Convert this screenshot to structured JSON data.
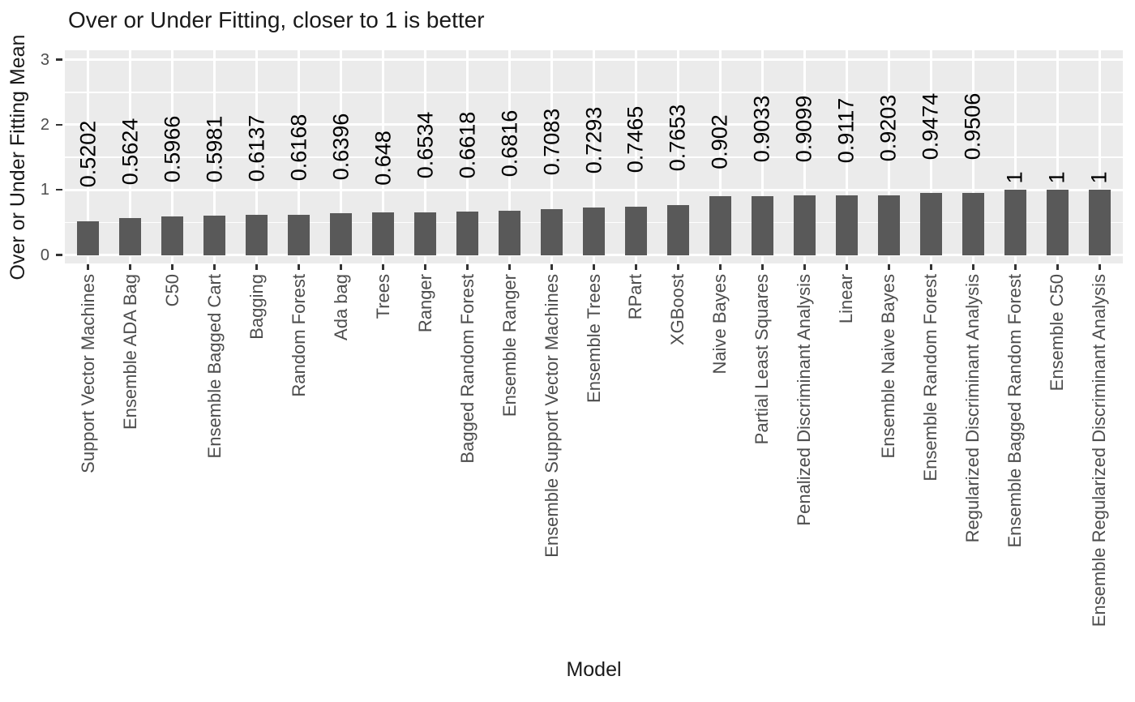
{
  "chart_data": {
    "type": "bar",
    "title": "Over or Under Fitting, closer to 1 is better",
    "xlabel": "Model",
    "ylabel": "Over or Under Fitting Mean",
    "categories": [
      "Support Vector Machines",
      "Ensemble ADA Bag",
      "C50",
      "Ensemble Bagged Cart",
      "Bagging",
      "Random Forest",
      "Ada bag",
      "Trees",
      "Ranger",
      "Bagged Random Forest",
      "Ensemble Ranger",
      "Ensemble Support Vector Machines",
      "Ensemble Trees",
      "RPart",
      "XGBoost",
      "Naive Bayes",
      "Partial Least Squares",
      "Penalized Discriminant Analysis",
      "Linear",
      "Ensemble Naive Bayes",
      "Ensemble Random Forest",
      "Regularized Discriminant Analysis",
      "Ensemble Bagged Random Forest",
      "Ensemble C50",
      "Ensemble Regularized Discriminant Analysis"
    ],
    "values": [
      0.5202,
      0.5624,
      0.5966,
      0.5981,
      0.6137,
      0.6168,
      0.6396,
      0.648,
      0.6534,
      0.6618,
      0.6816,
      0.7083,
      0.7293,
      0.7465,
      0.7653,
      0.902,
      0.9033,
      0.9099,
      0.9117,
      0.9203,
      0.9474,
      0.9506,
      1,
      1,
      1
    ],
    "bar_labels": [
      "0.5202",
      "0.5624",
      "0.5966",
      "0.5981",
      "0.6137",
      "0.6168",
      "0.6396",
      "0.648",
      "0.6534",
      "0.6618",
      "0.6816",
      "0.7083",
      "0.7293",
      "0.7465",
      "0.7653",
      "0.902",
      "0.9033",
      "0.9099",
      "0.9117",
      "0.9203",
      "0.9474",
      "0.9506",
      "1",
      "1",
      "1"
    ],
    "ylim": [
      0,
      3
    ],
    "yticks": [
      0,
      1,
      2,
      3
    ],
    "ytick_labels": [
      "0",
      "1",
      "2",
      "3"
    ],
    "yticks_minor": [
      0.5,
      1.5,
      2.5
    ],
    "grid": true,
    "legend": false,
    "style": {
      "panel_bg": "#EBEBEB",
      "grid_color": "#FFFFFF",
      "bar_fill": "#595959",
      "axis_text_color": "#4D4D4D",
      "label_text_color": "#000000",
      "tick_mark_color": "#333333"
    }
  }
}
